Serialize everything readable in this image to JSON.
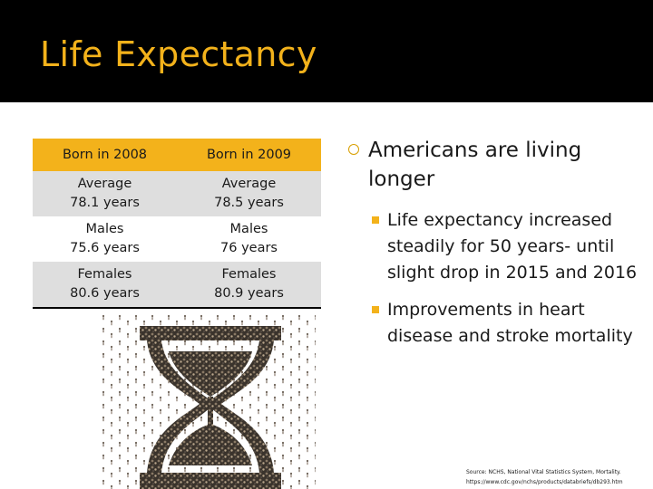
{
  "title": "Life Expectancy",
  "table": {
    "headers": [
      "Born in 2008",
      "Born in 2009"
    ],
    "rows": [
      [
        [
          "Average",
          "78.1 years"
        ],
        [
          "Average",
          "78.5 years"
        ]
      ],
      [
        [
          "Males",
          "75.6 years"
        ],
        [
          "Males",
          "76 years"
        ]
      ],
      [
        [
          "Females",
          "80.6 years"
        ],
        [
          "Females",
          "80.9 years"
        ]
      ]
    ]
  },
  "content": {
    "main_point": "Americans are living longer",
    "sub_points": [
      "Life expectancy increased steadily for 50 years- until slight drop in 2015 and 2016",
      "Improvements in heart disease and stroke mortality"
    ]
  },
  "source": {
    "line1": "Source: NCHS, National Vital Statistics System, Mortality.",
    "line2": "https://www.cdc.gov/nchs/products/databriefs/db293.htm"
  },
  "colors": {
    "title": "#f3b21b",
    "header_fill": "#f3b21b",
    "row_shade": "#dedede",
    "background_bar": "#000000"
  },
  "image": {
    "icon": "hourglass-crowd-icon"
  }
}
